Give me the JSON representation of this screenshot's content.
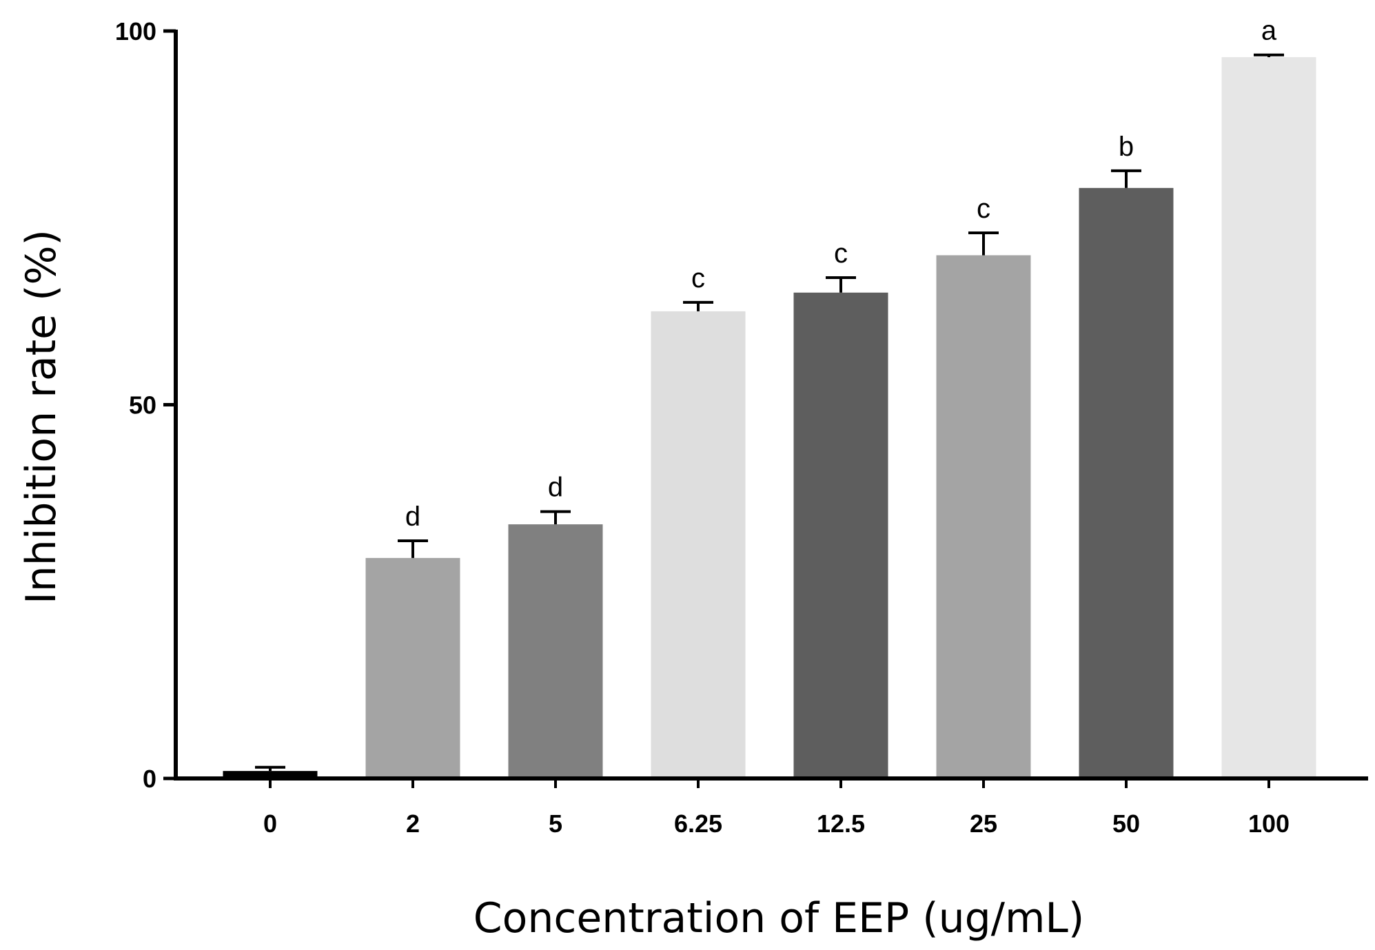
{
  "chart_data": {
    "type": "bar",
    "title": "",
    "xlabel": "Concentration of EEP (ug/mL)",
    "ylabel": "Inhibition rate (%)",
    "ylim": [
      0,
      100
    ],
    "yticks": [
      "0",
      "50",
      "100"
    ],
    "grid": false,
    "categories": [
      "0",
      "2",
      "5",
      "6.25",
      "12.5",
      "25",
      "50",
      "100"
    ],
    "values": [
      1,
      29.5,
      34,
      62.5,
      65,
      70,
      79,
      96.5
    ],
    "errors": [
      0.5,
      2.3,
      1.7,
      1.2,
      2,
      3,
      2.3,
      0.3
    ],
    "significance": [
      "",
      "d",
      "d",
      "c",
      "c",
      "c",
      "b",
      "a"
    ],
    "colors": [
      "#000000",
      "#a4a4a4",
      "#808080",
      "#dedede",
      "#5e5e5e",
      "#a4a4a4",
      "#5e5e5e",
      "#e6e6e6"
    ]
  }
}
